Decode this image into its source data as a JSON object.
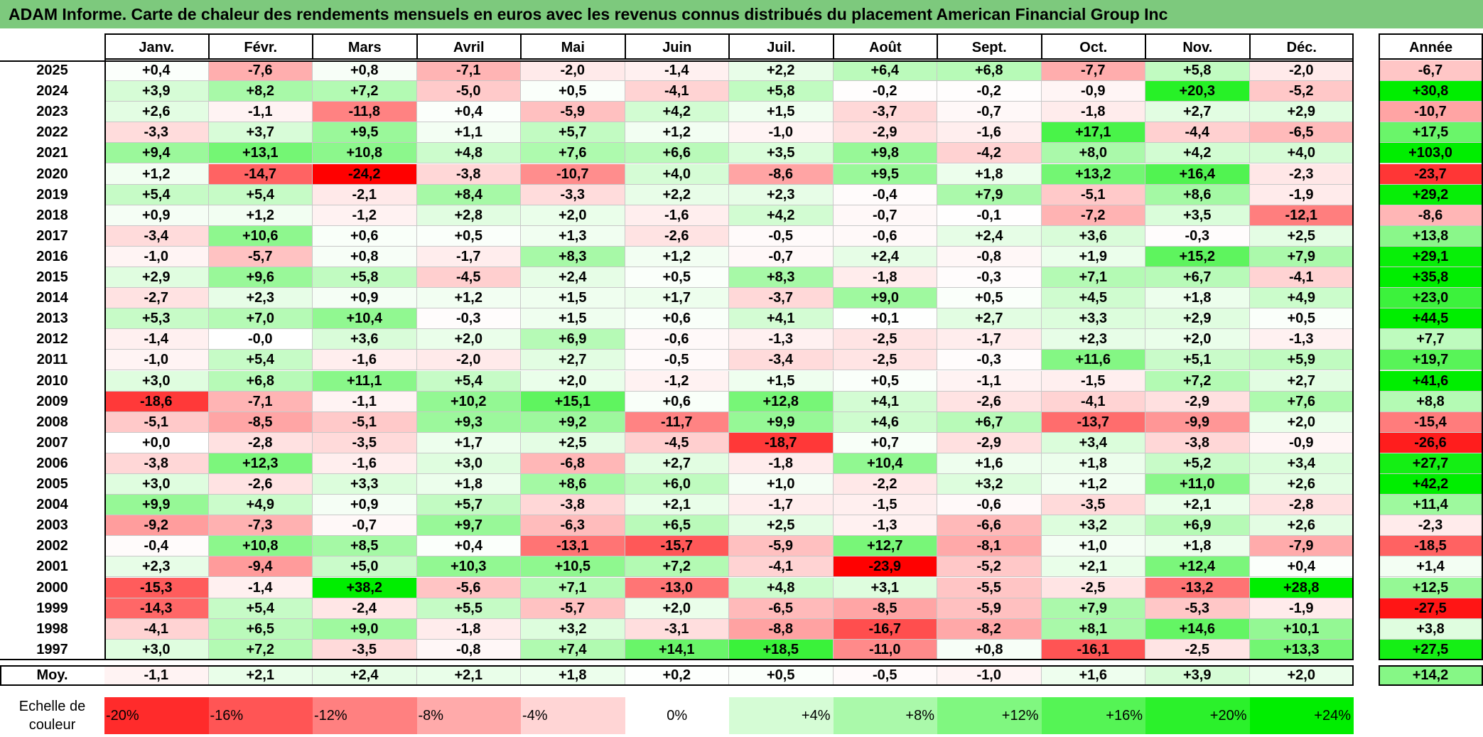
{
  "title": "ADAM Informe. Carte de chaleur des rendements mensuels en euros avec les revenus connus distribués du placement American Financial Group Inc",
  "chart_data": {
    "type": "heatmap",
    "title": "ADAM Informe. Carte de chaleur des rendements mensuels en euros avec les revenus connus distribués du placement American Financial Group Inc",
    "columns": [
      "Janv.",
      "Févr.",
      "Mars",
      "Avril",
      "Mai",
      "Juin",
      "Juil.",
      "Août",
      "Sept.",
      "Oct.",
      "Nov.",
      "Déc."
    ],
    "year_column_label": "Année",
    "rows": [
      {
        "year": "2025",
        "values": [
          "+0,4",
          "-7,6",
          "+0,8",
          "-7,1",
          "-2,0",
          "-1,4",
          "+2,2",
          "+6,4",
          "+6,8",
          "-7,7",
          "+5,8",
          "-2,0"
        ],
        "annual": "-6,7"
      },
      {
        "year": "2024",
        "values": [
          "+3,9",
          "+8,2",
          "+7,2",
          "-5,0",
          "+0,5",
          "-4,1",
          "+5,8",
          "-0,2",
          "-0,2",
          "-0,9",
          "+20,3",
          "-5,2"
        ],
        "annual": "+30,8"
      },
      {
        "year": "2023",
        "values": [
          "+2,6",
          "-1,1",
          "-11,8",
          "+0,4",
          "-5,9",
          "+4,2",
          "+1,5",
          "-3,7",
          "-0,7",
          "-1,8",
          "+2,7",
          "+2,9"
        ],
        "annual": "-10,7"
      },
      {
        "year": "2022",
        "values": [
          "-3,3",
          "+3,7",
          "+9,5",
          "+1,1",
          "+5,7",
          "+1,2",
          "-1,0",
          "-2,9",
          "-1,6",
          "+17,1",
          "-4,4",
          "-6,5"
        ],
        "annual": "+17,5"
      },
      {
        "year": "2021",
        "values": [
          "+9,4",
          "+13,1",
          "+10,8",
          "+4,8",
          "+7,6",
          "+6,6",
          "+3,5",
          "+9,8",
          "-4,2",
          "+8,0",
          "+4,2",
          "+4,0"
        ],
        "annual": "+103,0"
      },
      {
        "year": "2020",
        "values": [
          "+1,2",
          "-14,7",
          "-24,2",
          "-3,8",
          "-10,7",
          "+4,0",
          "-8,6",
          "+9,5",
          "+1,8",
          "+13,2",
          "+16,4",
          "-2,3"
        ],
        "annual": "-23,7"
      },
      {
        "year": "2019",
        "values": [
          "+5,4",
          "+5,4",
          "-2,1",
          "+8,4",
          "-3,3",
          "+2,2",
          "+2,3",
          "-0,4",
          "+7,9",
          "-5,1",
          "+8,6",
          "-1,9"
        ],
        "annual": "+29,2"
      },
      {
        "year": "2018",
        "values": [
          "+0,9",
          "+1,2",
          "-1,2",
          "+2,8",
          "+2,0",
          "-1,6",
          "+4,2",
          "-0,7",
          "-0,1",
          "-7,2",
          "+3,5",
          "-12,1"
        ],
        "annual": "-8,6"
      },
      {
        "year": "2017",
        "values": [
          "-3,4",
          "+10,6",
          "+0,6",
          "+0,5",
          "+1,3",
          "-2,6",
          "-0,5",
          "-0,6",
          "+2,4",
          "+3,6",
          "-0,3",
          "+2,5"
        ],
        "annual": "+13,8"
      },
      {
        "year": "2016",
        "values": [
          "-1,0",
          "-5,7",
          "+0,8",
          "-1,7",
          "+8,3",
          "+1,2",
          "-0,7",
          "+2,4",
          "-0,8",
          "+1,9",
          "+15,2",
          "+7,9"
        ],
        "annual": "+29,1"
      },
      {
        "year": "2015",
        "values": [
          "+2,9",
          "+9,6",
          "+5,8",
          "-4,5",
          "+2,4",
          "+0,5",
          "+8,3",
          "-1,8",
          "-0,3",
          "+7,1",
          "+6,7",
          "-4,1"
        ],
        "annual": "+35,8"
      },
      {
        "year": "2014",
        "values": [
          "-2,7",
          "+2,3",
          "+0,9",
          "+1,2",
          "+1,5",
          "+1,7",
          "-3,7",
          "+9,0",
          "+0,5",
          "+4,5",
          "+1,8",
          "+4,9"
        ],
        "annual": "+23,0"
      },
      {
        "year": "2013",
        "values": [
          "+5,3",
          "+7,0",
          "+10,4",
          "-0,3",
          "+1,5",
          "+0,6",
          "+4,1",
          "+0,1",
          "+2,7",
          "+3,3",
          "+2,9",
          "+0,5"
        ],
        "annual": "+44,5"
      },
      {
        "year": "2012",
        "values": [
          "-1,4",
          "-0,0",
          "+3,6",
          "+2,0",
          "+6,9",
          "-0,6",
          "-1,3",
          "-2,5",
          "-1,7",
          "+2,3",
          "+2,0",
          "-1,3"
        ],
        "annual": "+7,7"
      },
      {
        "year": "2011",
        "values": [
          "-1,0",
          "+5,4",
          "-1,6",
          "-2,0",
          "+2,7",
          "-0,5",
          "-3,4",
          "-2,5",
          "-0,3",
          "+11,6",
          "+5,1",
          "+5,9"
        ],
        "annual": "+19,7"
      },
      {
        "year": "2010",
        "values": [
          "+3,0",
          "+6,8",
          "+11,1",
          "+5,4",
          "+2,0",
          "-1,2",
          "+1,5",
          "+0,5",
          "-1,1",
          "-1,5",
          "+7,2",
          "+2,7"
        ],
        "annual": "+41,6"
      },
      {
        "year": "2009",
        "values": [
          "-18,6",
          "-7,1",
          "-1,1",
          "+10,2",
          "+15,1",
          "+0,6",
          "+12,8",
          "+4,1",
          "-2,6",
          "-4,1",
          "-2,9",
          "+7,6"
        ],
        "annual": "+8,8"
      },
      {
        "year": "2008",
        "values": [
          "-5,1",
          "-8,5",
          "-5,1",
          "+9,3",
          "+9,2",
          "-11,7",
          "+9,9",
          "+4,6",
          "+6,7",
          "-13,7",
          "-9,9",
          "+2,0"
        ],
        "annual": "-15,4"
      },
      {
        "year": "2007",
        "values": [
          "+0,0",
          "-2,8",
          "-3,5",
          "+1,7",
          "+2,5",
          "-4,5",
          "-18,7",
          "+0,7",
          "-2,9",
          "+3,4",
          "-3,8",
          "-0,9"
        ],
        "annual": "-26,6"
      },
      {
        "year": "2006",
        "values": [
          "-3,8",
          "+12,3",
          "-1,6",
          "+3,0",
          "-6,8",
          "+2,7",
          "-1,8",
          "+10,4",
          "+1,6",
          "+1,8",
          "+5,2",
          "+3,4"
        ],
        "annual": "+27,7"
      },
      {
        "year": "2005",
        "values": [
          "+3,0",
          "-2,6",
          "+3,3",
          "+1,8",
          "+8,6",
          "+6,0",
          "+1,0",
          "-2,2",
          "+3,2",
          "+1,2",
          "+11,0",
          "+2,6"
        ],
        "annual": "+42,2"
      },
      {
        "year": "2004",
        "values": [
          "+9,9",
          "+4,9",
          "+0,9",
          "+5,7",
          "-3,8",
          "+2,1",
          "-1,7",
          "-1,5",
          "-0,6",
          "-3,5",
          "+2,1",
          "-2,8"
        ],
        "annual": "+11,4"
      },
      {
        "year": "2003",
        "values": [
          "-9,2",
          "-7,3",
          "-0,7",
          "+9,7",
          "-6,3",
          "+6,5",
          "+2,5",
          "-1,3",
          "-6,6",
          "+3,2",
          "+6,9",
          "+2,6"
        ],
        "annual": "-2,3"
      },
      {
        "year": "2002",
        "values": [
          "-0,4",
          "+10,8",
          "+8,5",
          "+0,4",
          "-13,1",
          "-15,7",
          "-5,9",
          "+12,7",
          "-8,1",
          "+1,0",
          "+1,8",
          "-7,9"
        ],
        "annual": "-18,5"
      },
      {
        "year": "2001",
        "values": [
          "+2,3",
          "-9,4",
          "+5,0",
          "+10,3",
          "+10,5",
          "+7,2",
          "-4,1",
          "-23,9",
          "-5,2",
          "+2,1",
          "+12,4",
          "+0,4"
        ],
        "annual": "+1,4"
      },
      {
        "year": "2000",
        "values": [
          "-15,3",
          "-1,4",
          "+38,2",
          "-5,6",
          "+7,1",
          "-13,0",
          "+4,8",
          "+3,1",
          "-5,5",
          "-2,5",
          "-13,2",
          "+28,8"
        ],
        "annual": "+12,5"
      },
      {
        "year": "1999",
        "values": [
          "-14,3",
          "+5,4",
          "-2,4",
          "+5,5",
          "-5,7",
          "+2,0",
          "-6,5",
          "-8,5",
          "-5,9",
          "+7,9",
          "-5,3",
          "-1,9"
        ],
        "annual": "-27,5"
      },
      {
        "year": "1998",
        "values": [
          "-4,1",
          "+6,5",
          "+9,0",
          "-1,8",
          "+3,2",
          "-3,1",
          "-8,8",
          "-16,7",
          "-8,2",
          "+8,1",
          "+14,6",
          "+10,1"
        ],
        "annual": "+3,8"
      },
      {
        "year": "1997",
        "values": [
          "+3,0",
          "+7,2",
          "-3,5",
          "-0,8",
          "+7,4",
          "+14,1",
          "+18,5",
          "-11,0",
          "+0,8",
          "-16,1",
          "-2,5",
          "+13,3"
        ],
        "annual": "+27,5"
      }
    ],
    "average_label": "Moy.",
    "averages": [
      "-1,1",
      "+2,1",
      "+2,4",
      "+2,1",
      "+1,8",
      "+0,2",
      "+0,5",
      "-0,5",
      "-1,0",
      "+1,6",
      "+3,9",
      "+2,0"
    ],
    "average_annual": "+14,2",
    "scale_label": [
      "Echelle de",
      "couleur"
    ],
    "scale": [
      {
        "label": "-20%",
        "value": -20
      },
      {
        "label": "-16%",
        "value": -16
      },
      {
        "label": "-12%",
        "value": -12
      },
      {
        "label": "-8%",
        "value": -8
      },
      {
        "label": "-4%",
        "value": -4
      },
      {
        "label": "0%",
        "value": 0
      },
      {
        "label": "+4%",
        "value": 4
      },
      {
        "label": "+8%",
        "value": 8
      },
      {
        "label": "+12%",
        "value": 12
      },
      {
        "label": "+16%",
        "value": 16
      },
      {
        "label": "+20%",
        "value": 20
      },
      {
        "label": "+24%",
        "value": 24
      }
    ],
    "colors": {
      "negative": "#ff0000",
      "neutral": "#ffffff",
      "positive": "#00ee00",
      "title_bar": "#7dc97d"
    }
  }
}
